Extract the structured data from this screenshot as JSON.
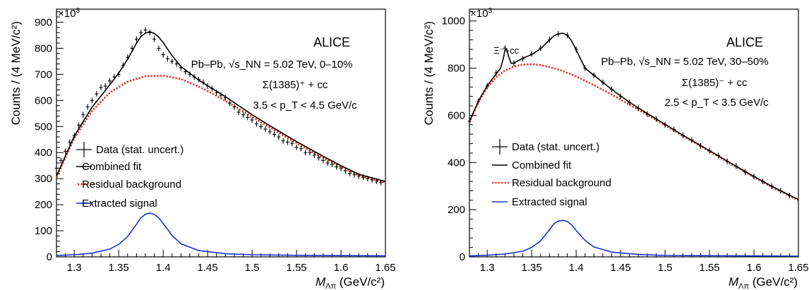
{
  "chart_data": [
    {
      "type": "line",
      "multiplier_label": "×10",
      "multiplier_exp": "3",
      "ylabel": "Counts / (4 MeV/c²)",
      "xlabel_main": "M",
      "xlabel_sub": "Λπ",
      "xlabel_unit": " (GeV/c²)",
      "xlim": [
        1.28,
        1.65
      ],
      "ylim": [
        0,
        950
      ],
      "xticks": [
        1.3,
        1.35,
        1.4,
        1.45,
        1.5,
        1.55,
        1.6,
        1.65
      ],
      "xtick_labels": [
        "1.3",
        "1.35",
        "1.4",
        "1.45",
        "1.5",
        "1.55",
        "1.6",
        "1.65"
      ],
      "yticks": [
        0,
        100,
        200,
        300,
        400,
        500,
        600,
        700,
        800,
        900
      ],
      "ytick_labels": [
        "0",
        "100",
        "200",
        "300",
        "400",
        "500",
        "600",
        "700",
        "800",
        "900"
      ],
      "annotations": {
        "experiment": "ALICE",
        "system": "Pb–Pb, √s_NN = 5.02 TeV, 0–10%",
        "particle": "Σ(1385)⁺ + cc",
        "pt_range": "3.5 < p_T < 4.5 GeV/c"
      },
      "legend": [
        {
          "label": "Data (stat. uncert.)",
          "style": "marker"
        },
        {
          "label": "Combined fit",
          "style": "solid",
          "color": "#000000"
        },
        {
          "label": "Residual background",
          "style": "dotted",
          "color": "#e8281e"
        },
        {
          "label": "Extracted signal",
          "style": "solid",
          "color": "#1533d6"
        }
      ],
      "series": [
        {
          "key": "background",
          "color": "#e8281e",
          "x": [
            1.28,
            1.3,
            1.32,
            1.34,
            1.36,
            1.38,
            1.4,
            1.42,
            1.44,
            1.46,
            1.48,
            1.5,
            1.52,
            1.54,
            1.56,
            1.58,
            1.6,
            1.62,
            1.65
          ],
          "values": [
            305,
            455,
            560,
            630,
            672,
            693,
            695,
            682,
            653,
            618,
            578,
            537,
            496,
            456,
            417,
            380,
            345,
            313,
            285
          ]
        },
        {
          "key": "signal",
          "color": "#1533d6",
          "x": [
            1.28,
            1.3,
            1.32,
            1.34,
            1.35,
            1.36,
            1.37,
            1.375,
            1.38,
            1.385,
            1.39,
            1.395,
            1.4,
            1.41,
            1.42,
            1.44,
            1.47,
            1.5,
            1.55,
            1.6,
            1.65
          ],
          "values": [
            5,
            8,
            14,
            30,
            48,
            78,
            125,
            150,
            163,
            168,
            163,
            150,
            128,
            82,
            50,
            24,
            12,
            8,
            6,
            5,
            4
          ]
        },
        {
          "key": "fit",
          "color": "#000000",
          "x": [
            1.28,
            1.3,
            1.32,
            1.34,
            1.35,
            1.36,
            1.37,
            1.375,
            1.38,
            1.385,
            1.39,
            1.395,
            1.4,
            1.41,
            1.42,
            1.44,
            1.47,
            1.5,
            1.52,
            1.55,
            1.58,
            1.6,
            1.62,
            1.65
          ],
          "values": [
            310,
            463,
            574,
            660,
            705,
            758,
            820,
            845,
            858,
            864,
            857,
            843,
            822,
            772,
            730,
            678,
            614,
            545,
            503,
            442,
            386,
            350,
            317,
            289
          ]
        }
      ],
      "data_points": {
        "x": [
          1.28,
          1.285,
          1.29,
          1.295,
          1.3,
          1.305,
          1.31,
          1.315,
          1.32,
          1.325,
          1.33,
          1.335,
          1.34,
          1.345,
          1.35,
          1.355,
          1.36,
          1.365,
          1.37,
          1.375,
          1.38,
          1.385,
          1.39,
          1.395,
          1.4,
          1.405,
          1.41,
          1.415,
          1.42,
          1.425,
          1.43,
          1.435,
          1.44,
          1.445,
          1.45,
          1.455,
          1.46,
          1.465,
          1.47,
          1.475,
          1.48,
          1.485,
          1.49,
          1.495,
          1.5,
          1.505,
          1.51,
          1.515,
          1.52,
          1.525,
          1.53,
          1.535,
          1.54,
          1.545,
          1.55,
          1.555,
          1.56,
          1.565,
          1.57,
          1.575,
          1.58,
          1.585,
          1.59,
          1.595,
          1.6,
          1.605,
          1.61,
          1.615,
          1.62,
          1.625,
          1.63,
          1.635,
          1.64,
          1.645
        ],
        "values": [
          340,
          370,
          405,
          440,
          465,
          505,
          545,
          575,
          600,
          625,
          650,
          655,
          675,
          690,
          700,
          735,
          765,
          800,
          835,
          860,
          870,
          860,
          835,
          800,
          775,
          760,
          750,
          740,
          725,
          710,
          700,
          690,
          680,
          670,
          655,
          645,
          630,
          620,
          610,
          590,
          575,
          555,
          545,
          535,
          525,
          510,
          500,
          490,
          480,
          470,
          460,
          445,
          440,
          435,
          420,
          415,
          400,
          400,
          390,
          380,
          370,
          360,
          355,
          345,
          340,
          330,
          320,
          315,
          310,
          305,
          300,
          295,
          290,
          285
        ]
      }
    },
    {
      "type": "line",
      "multiplier_label": "×10",
      "multiplier_exp": "3",
      "ylabel": "Counts / (4 MeV/c²)",
      "xlabel_main": "M",
      "xlabel_sub": "Λπ",
      "xlabel_unit": " (GeV/c²)",
      "xlim": [
        1.28,
        1.65
      ],
      "ylim": [
        0,
        1050
      ],
      "xticks": [
        1.3,
        1.35,
        1.4,
        1.45,
        1.5,
        1.55,
        1.6,
        1.65
      ],
      "xtick_labels": [
        "1.3",
        "1.35",
        "1.4",
        "1.45",
        "1.5",
        "1.55",
        "1.6",
        "1.65"
      ],
      "yticks": [
        0,
        200,
        400,
        600,
        800,
        1000
      ],
      "ytick_labels": [
        "0",
        "200",
        "400",
        "600",
        "800",
        "1000"
      ],
      "annotations": {
        "experiment": "ALICE",
        "system": "Pb–Pb, √s_NN = 5.02 TeV, 30–50%",
        "particle": "Σ(1385)⁻ + cc",
        "pt_range": "2.5 < p_T < 3.5 GeV/c",
        "peak_label": "Ξ⁻+cc"
      },
      "legend": [
        {
          "label": "Data (stat. uncert.)",
          "style": "marker"
        },
        {
          "label": "Combined fit",
          "style": "solid",
          "color": "#000000"
        },
        {
          "label": "Residual background",
          "style": "dotted",
          "color": "#e8281e"
        },
        {
          "label": "Extracted signal",
          "style": "solid",
          "color": "#1533d6"
        }
      ],
      "series": [
        {
          "key": "background",
          "color": "#e8281e",
          "x": [
            1.28,
            1.29,
            1.3,
            1.31,
            1.32,
            1.33,
            1.34,
            1.35,
            1.36,
            1.38,
            1.4,
            1.42,
            1.44,
            1.46,
            1.48,
            1.5,
            1.52,
            1.54,
            1.56,
            1.58,
            1.6,
            1.62,
            1.65
          ],
          "values": [
            570,
            655,
            718,
            762,
            790,
            807,
            815,
            817,
            813,
            795,
            765,
            728,
            688,
            645,
            602,
            558,
            513,
            469,
            425,
            381,
            338,
            296,
            240
          ]
        },
        {
          "key": "signal",
          "color": "#1533d6",
          "x": [
            1.28,
            1.3,
            1.32,
            1.34,
            1.35,
            1.36,
            1.37,
            1.375,
            1.38,
            1.385,
            1.39,
            1.395,
            1.4,
            1.41,
            1.42,
            1.44,
            1.47,
            1.5,
            1.55,
            1.6,
            1.65
          ],
          "values": [
            4,
            7,
            12,
            24,
            40,
            68,
            115,
            140,
            152,
            155,
            150,
            135,
            112,
            70,
            42,
            20,
            10,
            6,
            5,
            4,
            3
          ]
        },
        {
          "key": "fit",
          "color": "#000000",
          "x": [
            1.28,
            1.29,
            1.3,
            1.31,
            1.315,
            1.318,
            1.32,
            1.322,
            1.324,
            1.327,
            1.33,
            1.34,
            1.35,
            1.36,
            1.37,
            1.375,
            1.38,
            1.385,
            1.39,
            1.395,
            1.4,
            1.41,
            1.42,
            1.44,
            1.46,
            1.48,
            1.5,
            1.52,
            1.54,
            1.56,
            1.58,
            1.6,
            1.62,
            1.65
          ],
          "values": [
            575,
            660,
            726,
            775,
            800,
            840,
            878,
            880,
            850,
            820,
            822,
            842,
            858,
            882,
            920,
            937,
            945,
            948,
            940,
            915,
            878,
            800,
            770,
            710,
            655,
            608,
            562,
            516,
            472,
            428,
            384,
            341,
            299,
            243
          ]
        }
      ],
      "data_points": {
        "x": [
          1.28,
          1.29,
          1.3,
          1.31,
          1.32,
          1.33,
          1.34,
          1.35,
          1.36,
          1.37,
          1.38,
          1.39,
          1.4,
          1.41,
          1.42,
          1.43,
          1.44,
          1.45,
          1.46,
          1.47,
          1.48,
          1.49,
          1.5,
          1.51,
          1.52,
          1.53,
          1.54,
          1.55,
          1.56,
          1.57,
          1.58,
          1.59,
          1.6,
          1.61,
          1.62,
          1.63,
          1.64
        ],
        "values": [
          575,
          660,
          725,
          780,
          885,
          820,
          840,
          860,
          885,
          920,
          945,
          940,
          880,
          800,
          770,
          740,
          710,
          680,
          655,
          630,
          605,
          585,
          560,
          540,
          515,
          495,
          470,
          450,
          430,
          405,
          385,
          360,
          340,
          320,
          300,
          280,
          260
        ]
      }
    }
  ]
}
